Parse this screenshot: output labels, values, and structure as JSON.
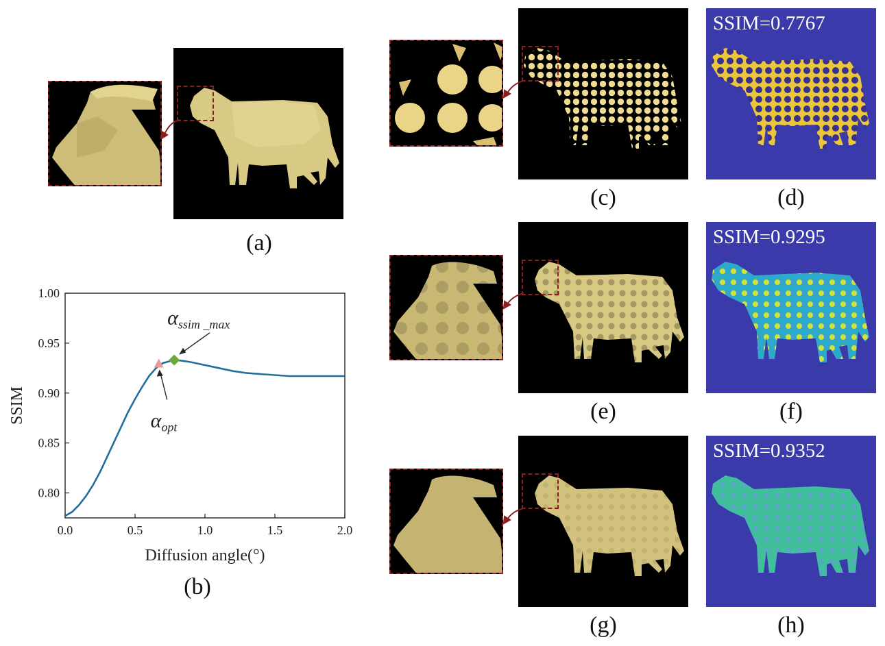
{
  "figure": {
    "captions": {
      "a": "(a)",
      "b": "(b)",
      "c": "(c)",
      "d": "(d)",
      "e": "(e)",
      "f": "(f)",
      "g": "(g)",
      "h": "(h)"
    },
    "ssim_labels": {
      "d": "SSIM=0.7767",
      "f": "SSIM=0.9295",
      "h": "SSIM=0.9352"
    }
  },
  "chart_data": {
    "type": "line",
    "xlabel": "Diffusion angle(°)",
    "ylabel": "SSIM",
    "xlim": [
      0.0,
      2.0
    ],
    "ylim": [
      0.775,
      1.0
    ],
    "xticks": [
      "0.0",
      "0.5",
      "1.0",
      "1.5",
      "2.0"
    ],
    "yticks": [
      "0.80",
      "0.85",
      "0.90",
      "0.95",
      "1.00"
    ],
    "x": [
      0.0,
      0.05,
      0.1,
      0.15,
      0.2,
      0.25,
      0.3,
      0.35,
      0.4,
      0.45,
      0.5,
      0.55,
      0.6,
      0.65,
      0.7,
      0.75,
      0.8,
      0.85,
      0.9,
      1.0,
      1.1,
      1.2,
      1.3,
      1.4,
      1.5,
      1.6,
      1.7,
      1.8,
      1.9,
      2.0
    ],
    "series": [
      {
        "values": [
          0.777,
          0.781,
          0.788,
          0.797,
          0.808,
          0.821,
          0.836,
          0.851,
          0.866,
          0.881,
          0.894,
          0.906,
          0.917,
          0.925,
          0.93,
          0.932,
          0.933,
          0.932,
          0.931,
          0.928,
          0.925,
          0.922,
          0.92,
          0.919,
          0.918,
          0.917,
          0.917,
          0.917,
          0.917,
          0.917
        ],
        "color": "#1f6e9e"
      }
    ],
    "markers": [
      {
        "label_main": "α",
        "label_sub": "opt",
        "x": 0.67,
        "y": 0.929,
        "shape": "triangle",
        "color": "#e89a9a"
      },
      {
        "label_main": "α",
        "label_sub": "ssim _max",
        "x": 0.78,
        "y": 0.933,
        "shape": "diamond",
        "color": "#6fa83a"
      }
    ]
  }
}
